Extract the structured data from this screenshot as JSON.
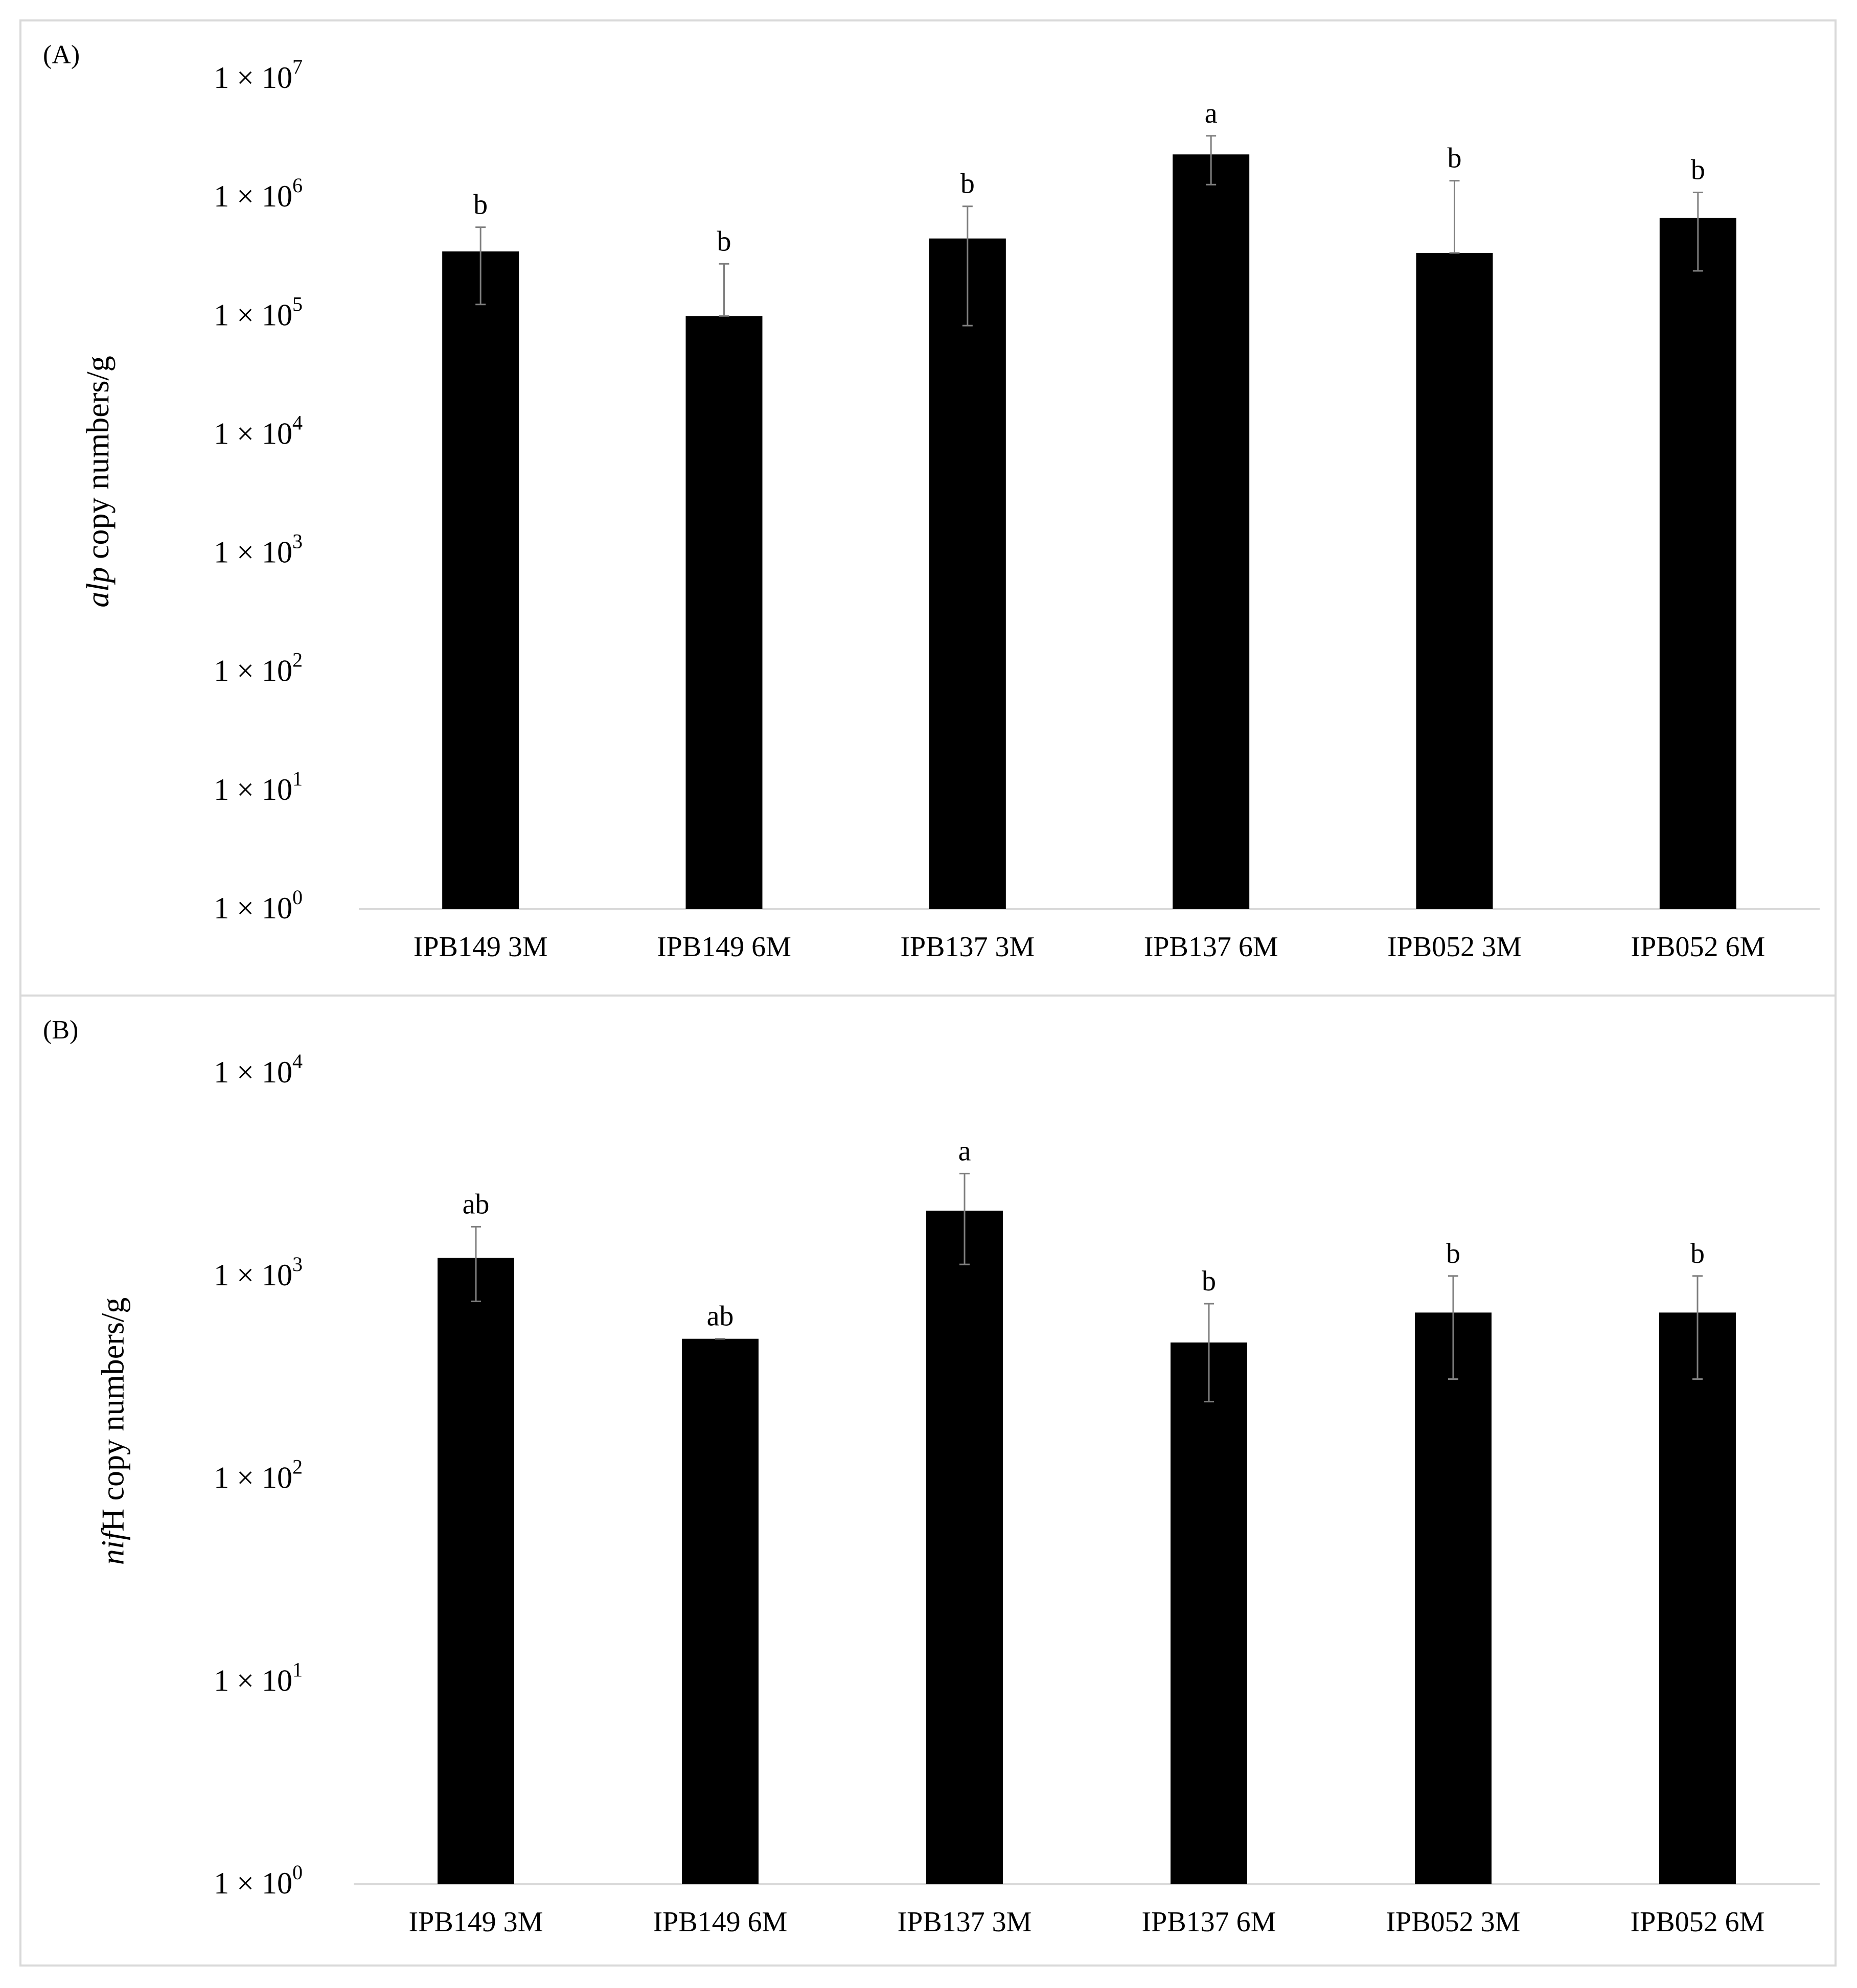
{
  "chart_data": [
    {
      "type": "bar",
      "panel_label": "(A)",
      "ylabel_italic": "alp",
      "ylabel_rest": " copy numbers/g",
      "y_scale": "log",
      "ylim": [
        1,
        10000000
      ],
      "yticks": [
        {
          "mant": "1 × 10",
          "exp": "0"
        },
        {
          "mant": "1 × 10",
          "exp": "1"
        },
        {
          "mant": "1 × 10",
          "exp": "2"
        },
        {
          "mant": "1 × 10",
          "exp": "3"
        },
        {
          "mant": "1 × 10",
          "exp": "4"
        },
        {
          "mant": "1 × 10",
          "exp": "5"
        },
        {
          "mant": "1 × 10",
          "exp": "6"
        },
        {
          "mant": "1 × 10",
          "exp": "7"
        }
      ],
      "categories": [
        "IPB149 3M",
        "IPB149 6M",
        "IPB137 3M",
        "IPB137 6M",
        "IPB052 3M",
        "IPB052 6M"
      ],
      "values": [
        350000,
        100000,
        450000,
        2300000,
        340000,
        670000
      ],
      "error_high": [
        560000,
        275000,
        840000,
        3300000,
        1380000,
        1100000
      ],
      "error_low": [
        125000,
        100000,
        83000,
        1280000,
        340000,
        240000
      ],
      "letters": [
        "b",
        "b",
        "b",
        "a",
        "b",
        "b"
      ],
      "bar_color": "#000000",
      "grid": false
    },
    {
      "type": "bar",
      "panel_label": "(B)",
      "ylabel_italic": "nif",
      "ylabel_rest": "H copy numbers/g",
      "y_scale": "log",
      "ylim": [
        1,
        10000
      ],
      "yticks": [
        {
          "mant": "1 × 10",
          "exp": "0"
        },
        {
          "mant": "1 × 10",
          "exp": "1"
        },
        {
          "mant": "1 × 10",
          "exp": "2"
        },
        {
          "mant": "1 × 10",
          "exp": "3"
        },
        {
          "mant": "1 × 10",
          "exp": "4"
        }
      ],
      "categories": [
        "IPB149 3M",
        "IPB149 6M",
        "IPB137 3M",
        "IPB137 6M",
        "IPB052 3M",
        "IPB052 6M"
      ],
      "values": [
        1230,
        490,
        2100,
        470,
        660,
        660
      ],
      "error_high": [
        1750,
        490,
        3200,
        730,
        1000,
        1000
      ],
      "error_low": [
        750,
        490,
        1140,
        240,
        310,
        310
      ],
      "letters": [
        "ab",
        "ab",
        "a",
        "b",
        "b",
        "b"
      ],
      "bar_color": "#000000",
      "grid": false
    }
  ]
}
